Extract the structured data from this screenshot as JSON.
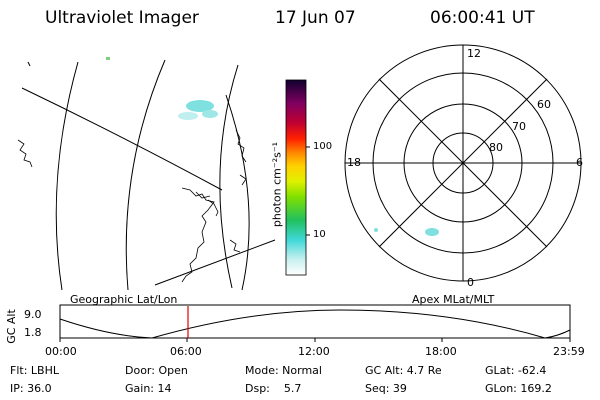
{
  "header": {
    "instrument": "Ultraviolet Imager",
    "date": "17 Jun 07",
    "time": "06:00:41 UT"
  },
  "colorbar": {
    "label": "photon cm⁻²s⁻¹",
    "ticks": [
      "100",
      "10"
    ]
  },
  "polar": {
    "clock_labels": {
      "top": "12",
      "left": "18",
      "right": "6",
      "bottom": "0"
    },
    "lat_labels": [
      "60",
      "70",
      "80"
    ]
  },
  "labels": {
    "left_panel": "Geographic Lat/Lon",
    "right_panel": "Apex MLat/MLT",
    "y_axis": "GC Alt",
    "y_ticks": [
      "9.0",
      "1.8"
    ]
  },
  "timeline": {
    "ticks": [
      "00:00",
      "06:00",
      "12:00",
      "18:00",
      "23:59"
    ],
    "current_marker": "06:00"
  },
  "info": {
    "row1": [
      "Flt: LBHL",
      "Door: Open",
      "Mode: Normal",
      "GC Alt: 4.7 Re",
      "GLat: -62.4"
    ],
    "row2": [
      "IP: 36.0",
      "Gain: 14",
      "Dsp:    5.7",
      "Seq: 39",
      "GLon: 169.2"
    ]
  },
  "colors": {
    "marker": "#e00000",
    "aurora": "#7fe0e0"
  }
}
